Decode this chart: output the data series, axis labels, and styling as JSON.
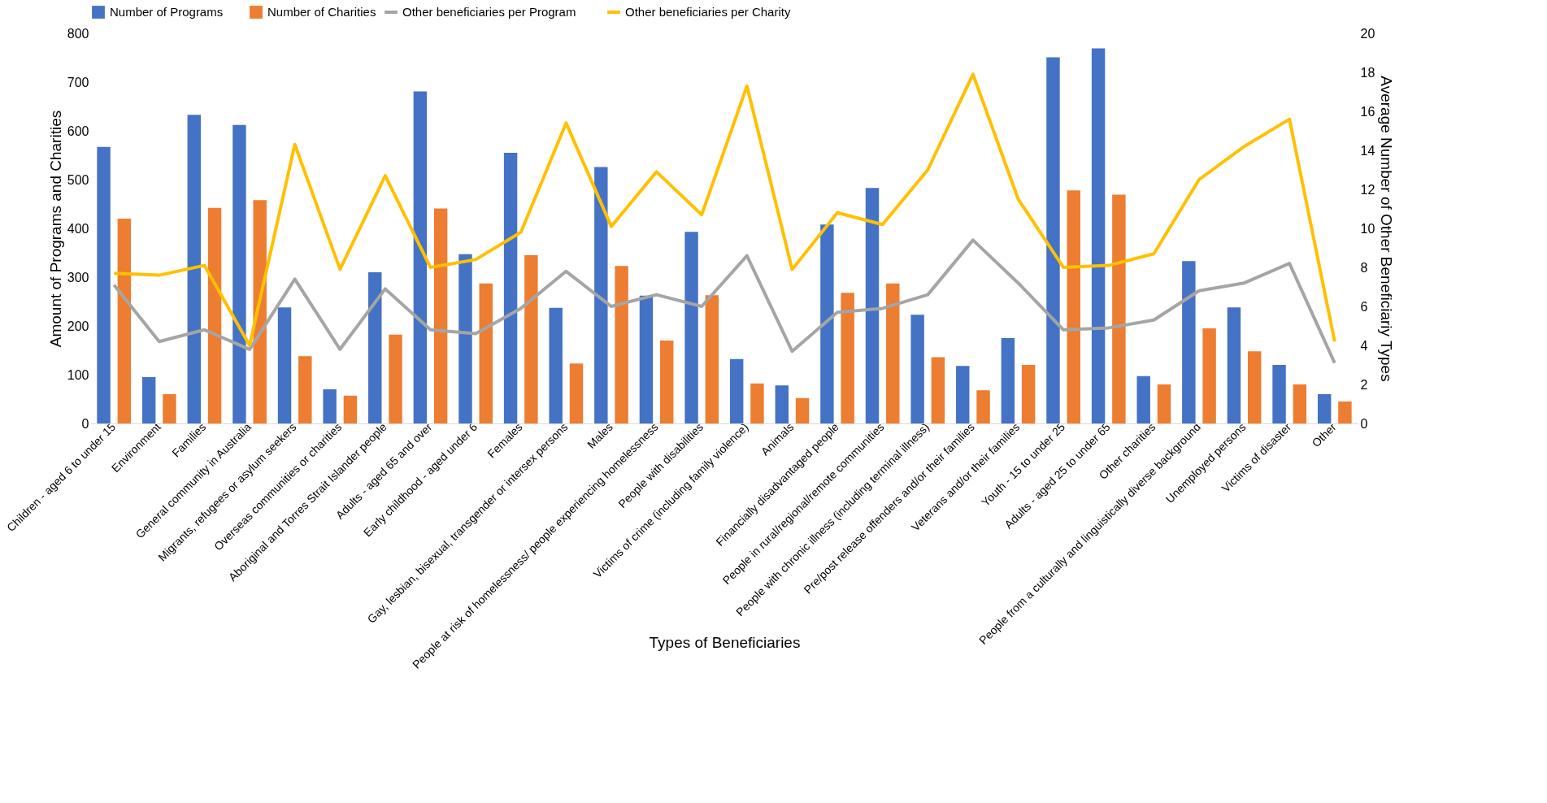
{
  "chart_data": {
    "type": "bar",
    "xlabel": "Types of Beneficiaries",
    "ylabel": "Amount of Programs and Charities",
    "y2label": "Average Number of Other Beneficiariy Types",
    "categories": [
      "Children - aged 6 to under 15",
      "Environment",
      "Families",
      "General community in Australia",
      "Migrants, refugees or asylum seekers",
      "Overseas communities or charities",
      "Aboriginal and Torres Strait Islander people",
      "Adults - aged 65 and over",
      "Early childhood - aged under 6",
      "Females",
      "Gay, lesbian, bisexual, transgender or intersex persons",
      "Males",
      "People at risk of homelessness/ people experiencing homelessness",
      "People with disabilities",
      "Victims of crime (including family violence)",
      "Animals",
      "Financially disadvantaged people",
      "People in rural/regional/remote communities",
      "People with chronic illness (including terminal illness)",
      "Pre/post release offenders and/or their families",
      "Veterans and/or their families",
      "Youth - 15 to under 25",
      "Adults - aged 25 to under 65",
      "Other charities",
      "People from a culturally and linguistically diverse background",
      "Unemployed persons",
      "Victims of disaster",
      "Other"
    ],
    "series": [
      {
        "name": "Number of Programs",
        "color": "#4472c4",
        "values": [
          567,
          95,
          633,
          612,
          238,
          70,
          310,
          681,
          347,
          555,
          237,
          526,
          262,
          393,
          132,
          78,
          408,
          483,
          223,
          118,
          175,
          751,
          769,
          97,
          333,
          238,
          120,
          60
        ]
      },
      {
        "name": "Number of Charities",
        "color": "#ed7d31",
        "values": [
          420,
          60,
          442,
          458,
          138,
          57,
          182,
          441,
          287,
          345,
          123,
          323,
          170,
          263,
          82,
          52,
          268,
          287,
          136,
          68,
          120,
          478,
          469,
          80,
          195,
          148,
          80,
          45
        ]
      },
      {
        "name": "Other beneficiaries per Program",
        "type": "line",
        "axis": "y2",
        "color": "#a5a5a5",
        "values": [
          7.1,
          4.2,
          4.8,
          3.8,
          7.4,
          3.8,
          6.9,
          4.8,
          4.6,
          5.9,
          7.8,
          6.0,
          6.6,
          6.0,
          8.6,
          3.7,
          5.7,
          5.9,
          6.6,
          9.4,
          7.2,
          4.8,
          4.9,
          5.3,
          6.8,
          7.2,
          8.2,
          3.1
        ]
      },
      {
        "name": "Other beneficiaries per Charity",
        "type": "line",
        "axis": "y2",
        "color": "#ffc000",
        "values": [
          7.7,
          7.6,
          8.1,
          4.0,
          14.3,
          7.9,
          12.7,
          8.0,
          8.4,
          9.8,
          15.4,
          10.1,
          12.9,
          10.7,
          17.3,
          7.9,
          10.8,
          10.2,
          13.0,
          17.9,
          11.5,
          8.0,
          8.1,
          8.7,
          12.5,
          14.2,
          15.6,
          4.2
        ]
      }
    ],
    "ylim": [
      0,
      800
    ],
    "yticks": [
      0,
      100,
      200,
      300,
      400,
      500,
      600,
      700,
      800
    ],
    "y2lim": [
      0,
      20
    ],
    "y2ticks": [
      0,
      2,
      4,
      6,
      8,
      10,
      12,
      14,
      16,
      18,
      20
    ],
    "legend": "top",
    "grid": false
  }
}
